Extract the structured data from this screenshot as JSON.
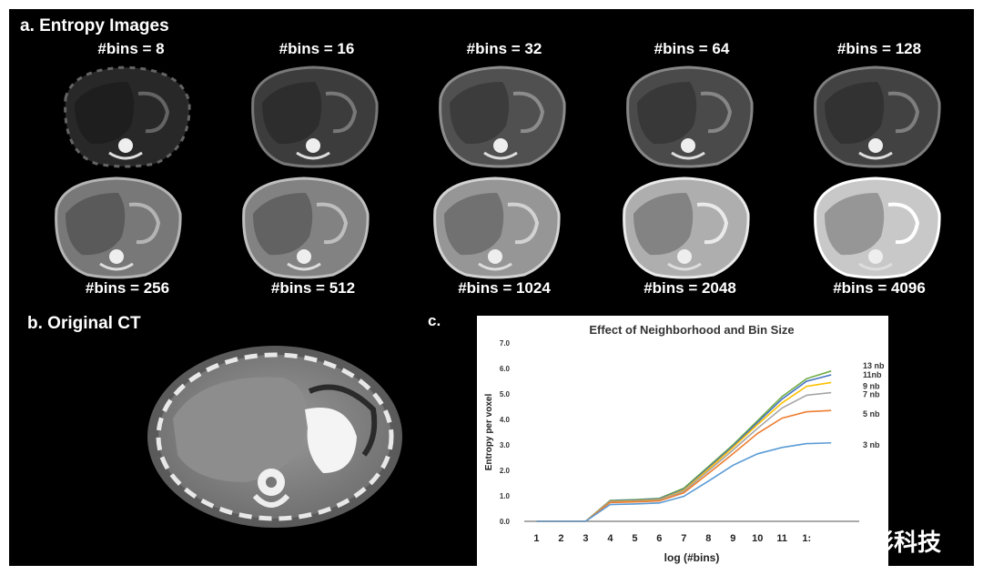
{
  "sections": {
    "a_title": "a.  Entropy Images",
    "b_title": "b.  Original CT",
    "c_title": "c."
  },
  "entropy_images": {
    "top_row": [
      {
        "label": "#bins = 8",
        "brightness": 0.05
      },
      {
        "label": "#bins = 16",
        "brightness": 0.15
      },
      {
        "label": "#bins = 32",
        "brightness": 0.25
      },
      {
        "label": "#bins = 64",
        "brightness": 0.22
      },
      {
        "label": "#bins = 128",
        "brightness": 0.18
      }
    ],
    "bottom_row": [
      {
        "label": "#bins = 256",
        "brightness": 0.45
      },
      {
        "label": "#bins = 512",
        "brightness": 0.5
      },
      {
        "label": "#bins = 1024",
        "brightness": 0.6
      },
      {
        "label": "#bins = 2048",
        "brightness": 0.72
      },
      {
        "label": "#bins = 4096",
        "brightness": 0.85
      }
    ]
  },
  "watermark": {
    "text": "思影科技"
  },
  "chart_data": {
    "type": "line",
    "title": "Effect of Neighborhood and Bin Size",
    "xlabel": "log (#bins)",
    "ylabel": "Entropy per voxel",
    "xlim": [
      0.5,
      13.4
    ],
    "ylim": [
      0,
      7
    ],
    "x_ticks": [
      "1",
      "2",
      "3",
      "4",
      "5",
      "6",
      "7",
      "8",
      "9",
      "10",
      "11",
      "1:"
    ],
    "y_ticks": [
      "0.0",
      "1.0",
      "2.0",
      "3.0",
      "4.0",
      "5.0",
      "6.0",
      "7.0"
    ],
    "x": [
      1,
      2,
      3,
      4,
      5,
      6,
      7,
      8,
      9,
      10,
      11,
      12,
      13
    ],
    "series": [
      {
        "name": "13 nb",
        "color": "#70ad47",
        "values": [
          0,
          0,
          0,
          0.82,
          0.85,
          0.9,
          1.3,
          2.15,
          3.0,
          3.95,
          4.9,
          5.6,
          5.9
        ]
      },
      {
        "name": "11nb",
        "color": "#4472c4",
        "values": [
          0,
          0,
          0,
          0.8,
          0.83,
          0.88,
          1.25,
          2.1,
          2.95,
          3.88,
          4.8,
          5.5,
          5.75
        ]
      },
      {
        "name": "9 nb",
        "color": "#ffc000",
        "values": [
          0,
          0,
          0,
          0.78,
          0.8,
          0.85,
          1.22,
          2.05,
          2.9,
          3.8,
          4.65,
          5.3,
          5.45
        ]
      },
      {
        "name": "7 nb",
        "color": "#a5a5a5",
        "values": [
          0,
          0,
          0,
          0.76,
          0.78,
          0.83,
          1.18,
          1.98,
          2.8,
          3.65,
          4.45,
          4.95,
          5.05
        ]
      },
      {
        "name": "5 nb",
        "color": "#ed7d31",
        "values": [
          0,
          0,
          0,
          0.74,
          0.76,
          0.8,
          1.12,
          1.88,
          2.65,
          3.45,
          4.05,
          4.3,
          4.35
        ]
      },
      {
        "name": "3 nb",
        "color": "#5b9bd5",
        "values": [
          0,
          0,
          0,
          0.66,
          0.68,
          0.72,
          0.98,
          1.58,
          2.2,
          2.65,
          2.9,
          3.05,
          3.08
        ]
      }
    ]
  }
}
